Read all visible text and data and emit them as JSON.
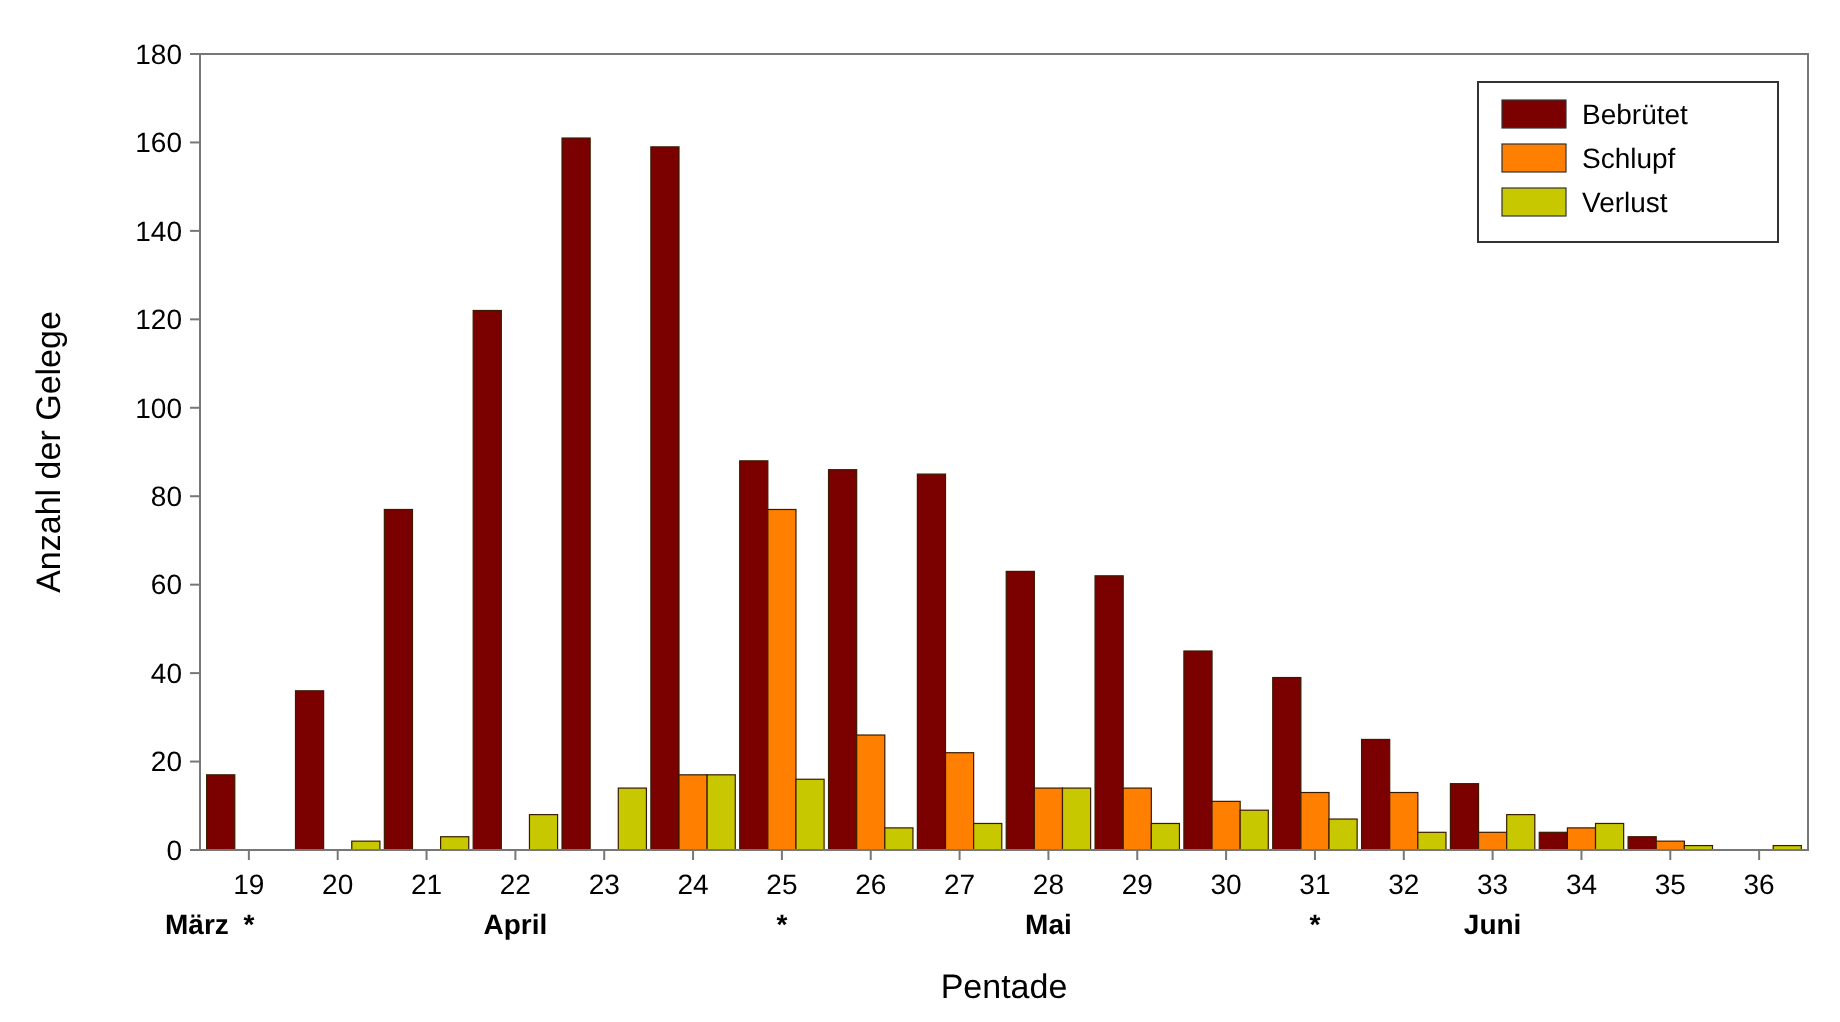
{
  "chart_data": {
    "type": "bar",
    "xlabel": "Pentade",
    "ylabel": "Anzahl der Gelege",
    "categories": [
      "19",
      "20",
      "21",
      "22",
      "23",
      "24",
      "25",
      "26",
      "27",
      "28",
      "29",
      "30",
      "31",
      "32",
      "33",
      "34",
      "35",
      "36"
    ],
    "series": [
      {
        "name": "Bebrütet",
        "color": "#7b0000",
        "values": [
          17,
          36,
          77,
          122,
          161,
          159,
          88,
          86,
          85,
          63,
          62,
          45,
          39,
          25,
          15,
          4,
          3,
          0
        ]
      },
      {
        "name": "Schlupf",
        "color": "#ff8000",
        "values": [
          0,
          0,
          0,
          0,
          0,
          17,
          77,
          26,
          22,
          14,
          14,
          11,
          13,
          13,
          4,
          5,
          2,
          0
        ]
      },
      {
        "name": "Verlust",
        "color": "#c8c800",
        "values": [
          0,
          2,
          3,
          8,
          14,
          17,
          16,
          5,
          6,
          14,
          6,
          9,
          7,
          4,
          8,
          6,
          1,
          1
        ]
      }
    ],
    "ylim": [
      0,
      180
    ],
    "yticks": [
      0,
      20,
      40,
      60,
      80,
      100,
      120,
      140,
      160,
      180
    ],
    "grid": false,
    "legend": "top right",
    "annotations": [
      "März",
      "*",
      "April",
      "*",
      "Mai",
      "*",
      "Juni"
    ]
  }
}
